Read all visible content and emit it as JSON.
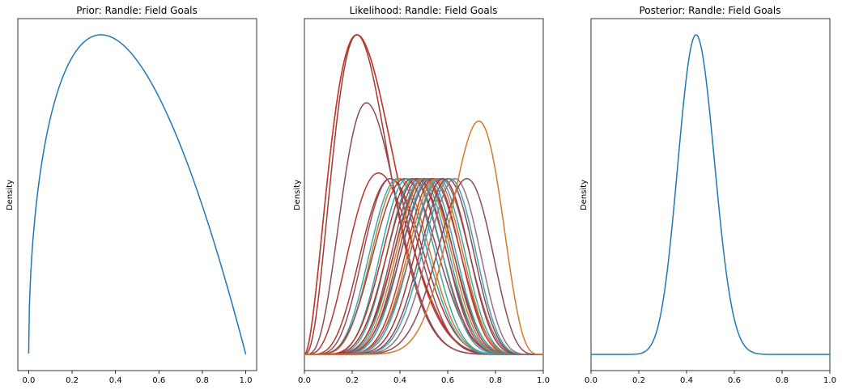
{
  "chart_data": [
    {
      "type": "line",
      "title": "Prior: Randle: Field Goals",
      "xlabel": "",
      "ylabel": "Density",
      "xlim": [
        -0.05,
        1.05
      ],
      "xticks": [
        "0.0",
        "0.2",
        "0.4",
        "0.6",
        "0.8",
        "1.0"
      ],
      "ytick_labels": false,
      "grid": false,
      "distribution": {
        "family": "beta",
        "alpha": 1.5,
        "beta": 2.0
      },
      "series": [
        {
          "color": "#1f77b4",
          "x_range": [
            0.0,
            1.0
          ]
        }
      ]
    },
    {
      "type": "line",
      "title": "Likelihood: Randle: Field Goals",
      "xlabel": "",
      "ylabel": "Density",
      "xlim": [
        0.0,
        1.0
      ],
      "xticks": [
        "0.0",
        "0.2",
        "0.4",
        "0.6",
        "0.8",
        "1.0"
      ],
      "ytick_labels": false,
      "grid": false,
      "distribution": {
        "family": "normalized_binomial_likelihood"
      },
      "series": [
        {
          "peak_p": 0.22,
          "n": 9,
          "color": "#b8342a"
        },
        {
          "peak_p": 0.22,
          "n": 9,
          "color": "#c0392b"
        },
        {
          "peak_p": 0.22,
          "n": 12,
          "color": "#a23a35"
        },
        {
          "peak_p": 0.26,
          "n": 14,
          "color": "#8c4a55"
        },
        {
          "peak_p": 0.31,
          "n": 12,
          "color": "#b8342a"
        },
        {
          "peak_p": 0.36,
          "n": 14,
          "color": "#a83a30"
        },
        {
          "peak_p": 0.36,
          "n": 17,
          "color": "#8f5060"
        },
        {
          "peak_p": 0.39,
          "n": 17,
          "color": "#3aa7b0"
        },
        {
          "peak_p": 0.4,
          "n": 17,
          "color": "#d07a2a"
        },
        {
          "peak_p": 0.42,
          "n": 14,
          "color": "#8c4a55"
        },
        {
          "peak_p": 0.43,
          "n": 20,
          "color": "#3aa7b0"
        },
        {
          "peak_p": 0.45,
          "n": 17,
          "color": "#b8342a"
        },
        {
          "peak_p": 0.46,
          "n": 20,
          "color": "#3aa7b0"
        },
        {
          "peak_p": 0.47,
          "n": 17,
          "color": "#a83a30"
        },
        {
          "peak_p": 0.48,
          "n": 20,
          "color": "#8f5060"
        },
        {
          "peak_p": 0.49,
          "n": 20,
          "color": "#3aa7b0"
        },
        {
          "peak_p": 0.5,
          "n": 17,
          "color": "#b8342a"
        },
        {
          "peak_p": 0.5,
          "n": 20,
          "color": "#d07a2a"
        },
        {
          "peak_p": 0.51,
          "n": 20,
          "color": "#8c4a55"
        },
        {
          "peak_p": 0.52,
          "n": 20,
          "color": "#3aa7b0"
        },
        {
          "peak_p": 0.53,
          "n": 17,
          "color": "#8f5060"
        },
        {
          "peak_p": 0.54,
          "n": 20,
          "color": "#c0392b"
        },
        {
          "peak_p": 0.55,
          "n": 20,
          "color": "#d07a2a"
        },
        {
          "peak_p": 0.56,
          "n": 20,
          "color": "#3aa7b0"
        },
        {
          "peak_p": 0.57,
          "n": 17,
          "color": "#9a7080"
        },
        {
          "peak_p": 0.58,
          "n": 20,
          "color": "#a23a35"
        },
        {
          "peak_p": 0.6,
          "n": 20,
          "color": "#8c4a55"
        },
        {
          "peak_p": 0.61,
          "n": 20,
          "color": "#3aa7b0"
        },
        {
          "peak_p": 0.63,
          "n": 20,
          "color": "#9a7080"
        },
        {
          "peak_p": 0.68,
          "n": 17,
          "color": "#8c4a55"
        },
        {
          "peak_p": 0.73,
          "n": 17,
          "color": "#d07a2a"
        }
      ]
    },
    {
      "type": "line",
      "title": "Posterior: Randle: Field Goals",
      "xlabel": "",
      "ylabel": "Density",
      "xlim": [
        0.0,
        1.0
      ],
      "xticks": [
        "0.0",
        "0.2",
        "0.4",
        "0.6",
        "0.8",
        "1.0"
      ],
      "ytick_labels": false,
      "grid": false,
      "distribution": {
        "family": "beta",
        "alpha": 19.6,
        "beta": 24.7
      },
      "series": [
        {
          "color": "#1f77b4",
          "x_range": [
            0.0,
            1.0
          ]
        }
      ]
    }
  ]
}
